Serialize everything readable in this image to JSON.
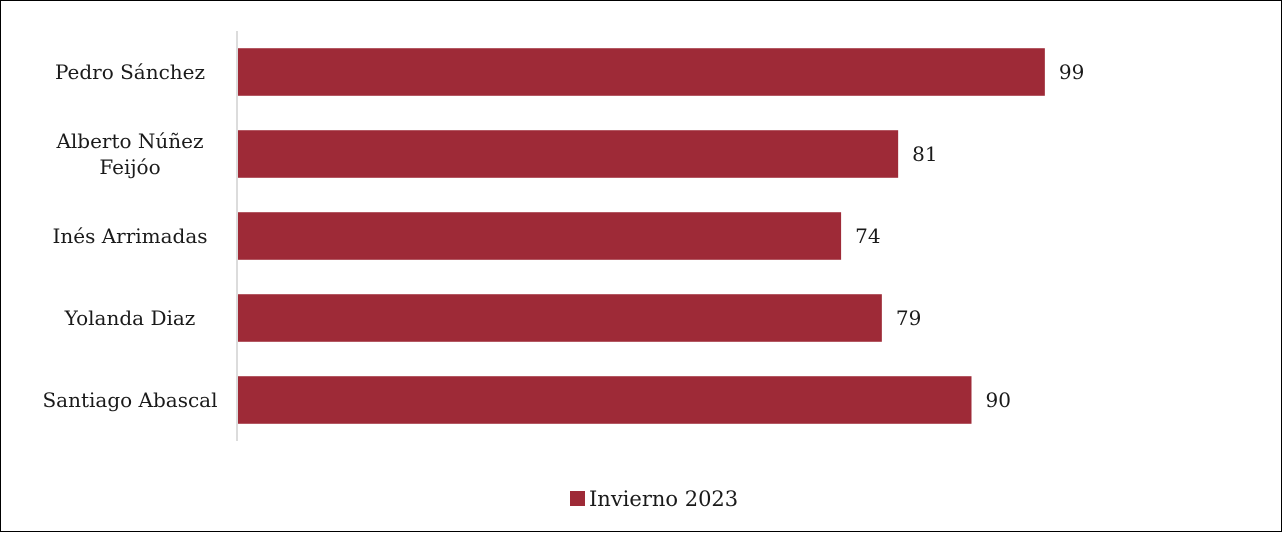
{
  "chart_data": {
    "type": "bar",
    "orientation": "horizontal",
    "categories": [
      [
        "Pedro Sánchez"
      ],
      [
        "Alberto Núñez",
        "Feijóo"
      ],
      [
        "Inés Arrimadas"
      ],
      [
        "Yolanda Diaz"
      ],
      [
        "Santiago Abascal"
      ]
    ],
    "series": [
      {
        "name": "Invierno 2023",
        "values": [
          99,
          81,
          74,
          79,
          90
        ],
        "color": "#9e2a37"
      }
    ],
    "xlim": [
      0,
      120
    ],
    "grid": false,
    "data_labels": true,
    "legend_position": "bottom",
    "title": "",
    "xlabel": "",
    "ylabel": ""
  }
}
